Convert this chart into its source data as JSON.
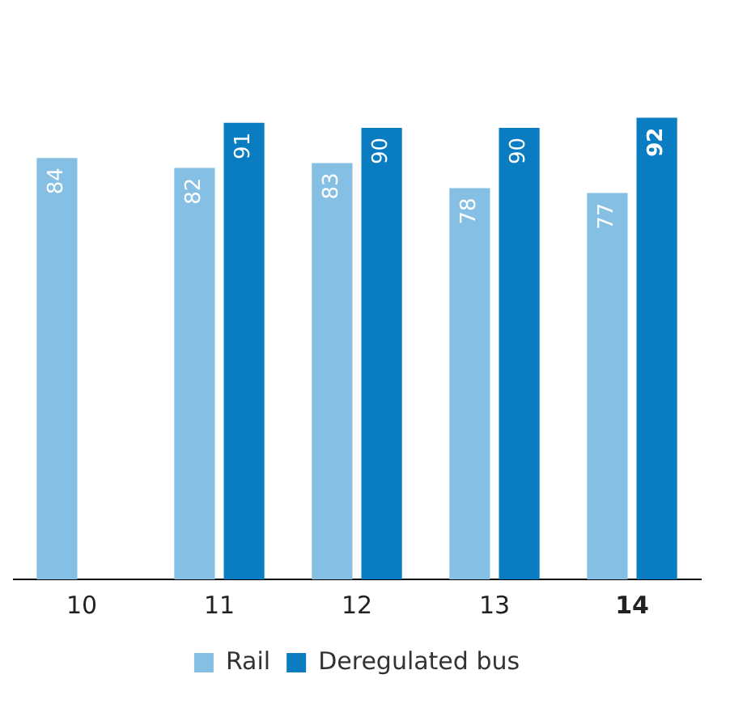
{
  "chart_data": {
    "type": "bar",
    "categories": [
      "10",
      "11",
      "12",
      "13",
      "14"
    ],
    "series": [
      {
        "name": "Rail",
        "color": "#85c0e4",
        "values": [
          84,
          82,
          83,
          78,
          77
        ]
      },
      {
        "name": "Deregulated bus",
        "color": "#0a7cc1",
        "values": [
          null,
          91,
          90,
          90,
          92
        ]
      }
    ],
    "data_labels": true,
    "legend": "bottom"
  }
}
